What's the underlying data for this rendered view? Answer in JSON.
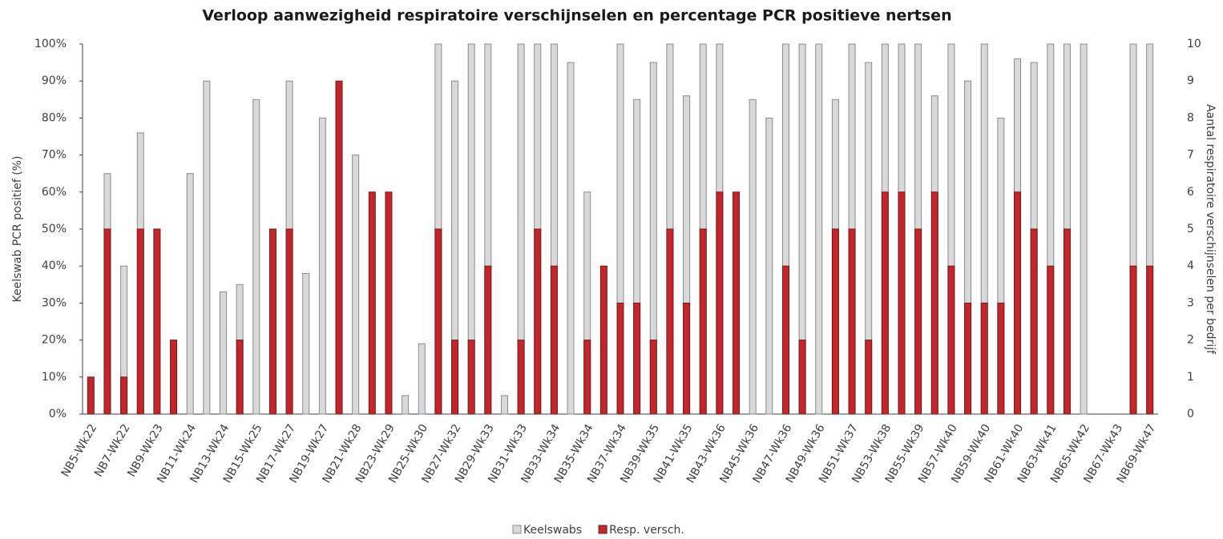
{
  "chart_data": {
    "type": "bar",
    "title": "Verloop aanwezigheid respiratoire verschijnselen en percentage PCR positieve nertsen",
    "y_label": "Keelswab PCR positief (%)",
    "y2_label": "Aantal respiratoire verschijnselen per bedrijf",
    "categories": [
      "NB5-Wk22",
      null,
      "NB7-Wk22",
      null,
      "NB9-Wk23",
      null,
      "NB11-Wk24",
      null,
      "NB13-Wk24",
      null,
      "NB15-Wk25",
      null,
      "NB17-Wk27",
      null,
      "NB19-Wk27",
      null,
      "NB21-Wk28",
      null,
      "NB23-Wk29",
      null,
      "NB25-Wk30",
      null,
      "NB27-Wk32",
      null,
      "NB29-Wk33",
      null,
      "NB31-Wk33",
      null,
      "NB33-Wk34",
      null,
      "NB35-Wk34",
      null,
      "NB37-Wk34",
      null,
      "NB39-Wk35",
      null,
      "NB41-Wk35",
      null,
      "NB43-Wk36",
      null,
      "NB45-Wk36",
      null,
      "NB47-Wk36",
      null,
      "NB49-Wk36",
      null,
      "NB51-Wk37",
      null,
      "NB53-Wk38",
      null,
      "NB55-Wk39",
      null,
      "NB57-Wk40",
      null,
      "NB59-Wk40",
      null,
      "NB61-Wk40",
      null,
      "NB63-Wk41",
      null,
      "NB65-Wk42",
      null,
      "NB67-Wk43",
      null,
      "NB69-Wk47"
    ],
    "series": [
      {
        "name": "Keelswabs",
        "color": "#d9d9d9",
        "values": [
          null,
          65,
          40,
          76,
          null,
          null,
          65,
          90,
          33,
          35,
          85,
          null,
          90,
          38,
          80,
          null,
          70,
          null,
          null,
          5,
          19,
          100,
          90,
          100,
          100,
          5,
          100,
          100,
          100,
          95,
          60,
          null,
          100,
          85,
          95,
          100,
          86,
          100,
          100,
          null,
          85,
          80,
          100,
          100,
          100,
          85,
          100,
          95,
          100,
          100,
          100,
          86,
          100,
          90,
          100,
          80,
          96,
          95,
          100,
          100,
          100,
          null,
          null,
          100,
          100
        ]
      },
      {
        "name": "Resp. versch.",
        "color": "#c0272d",
        "axis": "y2",
        "values": [
          1,
          5,
          1,
          5,
          5,
          2,
          null,
          null,
          null,
          2,
          null,
          5,
          5,
          null,
          null,
          9,
          null,
          6,
          6,
          null,
          null,
          5,
          2,
          2,
          4,
          null,
          2,
          5,
          4,
          null,
          2,
          4,
          3,
          3,
          2,
          5,
          3,
          5,
          6,
          6,
          null,
          null,
          4,
          2,
          null,
          5,
          5,
          2,
          6,
          6,
          5,
          6,
          4,
          3,
          3,
          3,
          6,
          5,
          4,
          5,
          null,
          null,
          null,
          4,
          4
        ]
      }
    ],
    "ylim": [
      0,
      100
    ],
    "yticks": [
      {
        "value": 0,
        "label": "0%"
      },
      {
        "value": 10,
        "label": "10%"
      },
      {
        "value": 20,
        "label": "20%"
      },
      {
        "value": 30,
        "label": "30%"
      },
      {
        "value": 40,
        "label": "40%"
      },
      {
        "value": 50,
        "label": "50%"
      },
      {
        "value": 60,
        "label": "60%"
      },
      {
        "value": 70,
        "label": "70%"
      },
      {
        "value": 80,
        "label": "80%"
      },
      {
        "value": 90,
        "label": "90%"
      },
      {
        "value": 100,
        "label": "100%"
      }
    ],
    "y2lim": [
      0,
      10
    ],
    "y2ticks": [
      0,
      1,
      2,
      3,
      4,
      5,
      6,
      7,
      8,
      9,
      10
    ],
    "legend": "bottom"
  }
}
